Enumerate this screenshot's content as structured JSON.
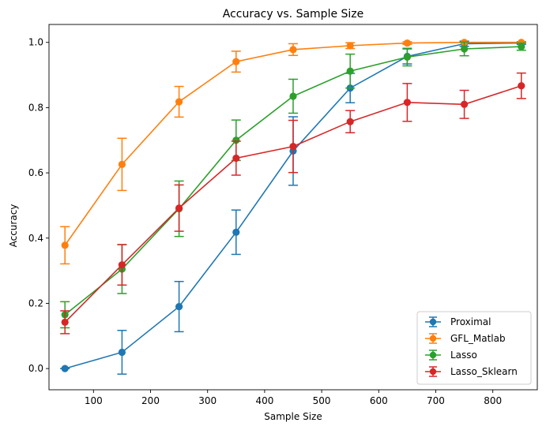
{
  "chart_data": {
    "type": "line",
    "title": "Accuracy vs. Sample Size",
    "xlabel": "Sample Size",
    "ylabel": "Accuracy",
    "xlim": [
      22,
      878
    ],
    "ylim": [
      -0.065,
      1.055
    ],
    "xticks": [
      100,
      200,
      300,
      400,
      500,
      600,
      700,
      800
    ],
    "yticks": [
      0.0,
      0.2,
      0.4,
      0.6,
      0.8,
      1.0
    ],
    "x": [
      50,
      150,
      250,
      350,
      450,
      550,
      650,
      750,
      850
    ],
    "grid": false,
    "legend_position": "lower-right",
    "series": [
      {
        "name": "Proximal",
        "color": "#1f77b4",
        "values": [
          0.0,
          0.05,
          0.19,
          0.418,
          0.667,
          0.86,
          0.957,
          0.996,
          0.998
        ],
        "err": [
          0.0,
          0.067,
          0.077,
          0.068,
          0.105,
          0.045,
          0.023,
          0.008,
          0.004
        ]
      },
      {
        "name": "GFL_Matlab",
        "color": "#ff7f0e",
        "values": [
          0.378,
          0.626,
          0.818,
          0.941,
          0.978,
          0.99,
          0.998,
          1.0,
          1.0
        ],
        "err": [
          0.057,
          0.08,
          0.047,
          0.032,
          0.018,
          0.009,
          0.004,
          0.0,
          0.0
        ]
      },
      {
        "name": "Lasso",
        "color": "#2ca02c",
        "values": [
          0.165,
          0.305,
          0.49,
          0.7,
          0.835,
          0.912,
          0.955,
          0.98,
          0.987
        ],
        "err": [
          0.04,
          0.075,
          0.085,
          0.062,
          0.052,
          0.052,
          0.027,
          0.021,
          0.011
        ]
      },
      {
        "name": "Lasso_Sklearn",
        "color": "#d62728",
        "values": [
          0.142,
          0.318,
          0.492,
          0.645,
          0.681,
          0.757,
          0.816,
          0.81,
          0.867
        ],
        "err": [
          0.035,
          0.062,
          0.071,
          0.052,
          0.08,
          0.034,
          0.058,
          0.043,
          0.039
        ]
      }
    ]
  }
}
